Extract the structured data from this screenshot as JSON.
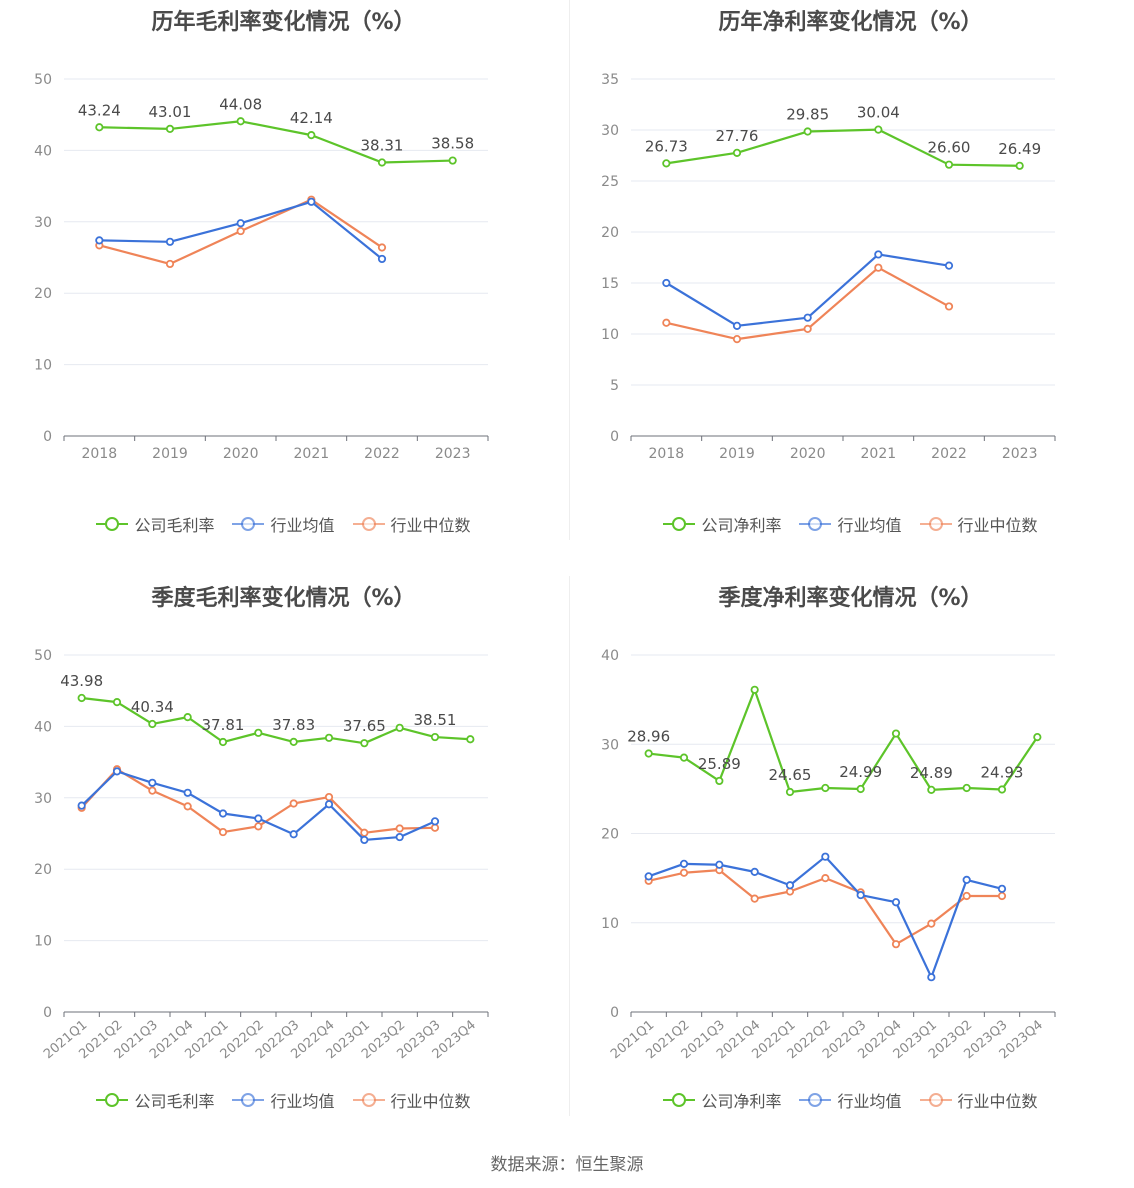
{
  "source": "数据来源：恒生聚源",
  "colors": {
    "company": "#5dc42a",
    "avg": "#3b72d9",
    "median": "#ef8458"
  },
  "chart_data": [
    {
      "id": "annual-gross",
      "type": "line",
      "title": "历年毛利率变化情况（%）",
      "x": [
        "2018",
        "2019",
        "2020",
        "2021",
        "2022",
        "2023"
      ],
      "ylim": [
        0,
        50
      ],
      "yticks": [
        0,
        10,
        20,
        30,
        40,
        50
      ],
      "grid": true,
      "legend": "bottom",
      "series": [
        {
          "name": "公司毛利率",
          "values": [
            43.24,
            43.01,
            44.08,
            42.14,
            38.31,
            38.58
          ],
          "labels": [
            "43.24",
            "43.01",
            "44.08",
            "42.14",
            "38.31",
            "38.58"
          ]
        },
        {
          "name": "行业均值",
          "values": [
            27.4,
            27.2,
            29.8,
            32.8,
            24.8,
            null
          ]
        },
        {
          "name": "行业中位数",
          "values": [
            26.7,
            24.1,
            28.7,
            33.1,
            26.4,
            null
          ]
        }
      ]
    },
    {
      "id": "annual-net",
      "type": "line",
      "title": "历年净利率变化情况（%）",
      "x": [
        "2018",
        "2019",
        "2020",
        "2021",
        "2022",
        "2023"
      ],
      "ylim": [
        0,
        35
      ],
      "yticks": [
        0,
        5,
        10,
        15,
        20,
        25,
        30,
        35
      ],
      "grid": true,
      "legend": "bottom",
      "series": [
        {
          "name": "公司净利率",
          "values": [
            26.73,
            27.76,
            29.85,
            30.04,
            26.6,
            26.49
          ],
          "labels": [
            "26.73",
            "27.76",
            "29.85",
            "30.04",
            "26.60",
            "26.49"
          ]
        },
        {
          "name": "行业均值",
          "values": [
            15.0,
            10.8,
            11.6,
            17.8,
            16.7,
            null
          ]
        },
        {
          "name": "行业中位数",
          "values": [
            11.1,
            9.5,
            10.5,
            16.5,
            12.7,
            null
          ]
        }
      ]
    },
    {
      "id": "quarter-gross",
      "type": "line",
      "title": "季度毛利率变化情况（%）",
      "x": [
        "2021Q1",
        "2021Q2",
        "2021Q3",
        "2021Q4",
        "2022Q1",
        "2022Q2",
        "2022Q3",
        "2022Q4",
        "2023Q1",
        "2023Q2",
        "2023Q3",
        "2023Q4"
      ],
      "ylim": [
        0,
        50
      ],
      "yticks": [
        0,
        10,
        20,
        30,
        40,
        50
      ],
      "grid": true,
      "legend": "bottom",
      "series": [
        {
          "name": "公司毛利率",
          "values": [
            43.98,
            43.4,
            40.34,
            41.3,
            37.81,
            39.1,
            37.83,
            38.4,
            37.65,
            39.8,
            38.51,
            38.2
          ],
          "labels": [
            "43.98",
            "",
            "40.34",
            "",
            "37.81",
            "",
            "37.83",
            "",
            "37.65",
            "",
            "38.51",
            ""
          ]
        },
        {
          "name": "行业均值",
          "values": [
            28.9,
            33.7,
            32.1,
            30.7,
            27.8,
            27.1,
            24.9,
            29.1,
            24.1,
            24.5,
            26.7,
            null
          ]
        },
        {
          "name": "行业中位数",
          "values": [
            28.6,
            34.0,
            31.0,
            28.8,
            25.2,
            26.0,
            29.2,
            30.1,
            25.1,
            25.7,
            25.8,
            null
          ]
        }
      ]
    },
    {
      "id": "quarter-net",
      "type": "line",
      "title": "季度净利率变化情况（%）",
      "x": [
        "2021Q1",
        "2021Q2",
        "2021Q3",
        "2021Q4",
        "2022Q1",
        "2022Q2",
        "2022Q3",
        "2022Q4",
        "2023Q1",
        "2023Q2",
        "2023Q3",
        "2023Q4"
      ],
      "ylim": [
        0,
        40
      ],
      "yticks": [
        0,
        10,
        20,
        30,
        40
      ],
      "grid": true,
      "legend": "bottom",
      "series": [
        {
          "name": "公司净利率",
          "values": [
            28.96,
            28.5,
            25.89,
            36.1,
            24.65,
            25.1,
            24.99,
            31.2,
            24.89,
            25.1,
            24.93,
            30.8
          ],
          "labels": [
            "28.96",
            "",
            "25.89",
            "",
            "24.65",
            "",
            "24.99",
            "",
            "24.89",
            "",
            "24.93",
            ""
          ]
        },
        {
          "name": "行业均值",
          "values": [
            15.2,
            16.6,
            16.5,
            15.7,
            14.2,
            17.4,
            13.1,
            12.3,
            3.9,
            14.8,
            13.8,
            null
          ]
        },
        {
          "name": "行业中位数",
          "values": [
            14.7,
            15.6,
            15.9,
            12.7,
            13.5,
            15.0,
            13.4,
            7.6,
            9.9,
            13.0,
            13.0,
            null
          ]
        }
      ]
    }
  ]
}
